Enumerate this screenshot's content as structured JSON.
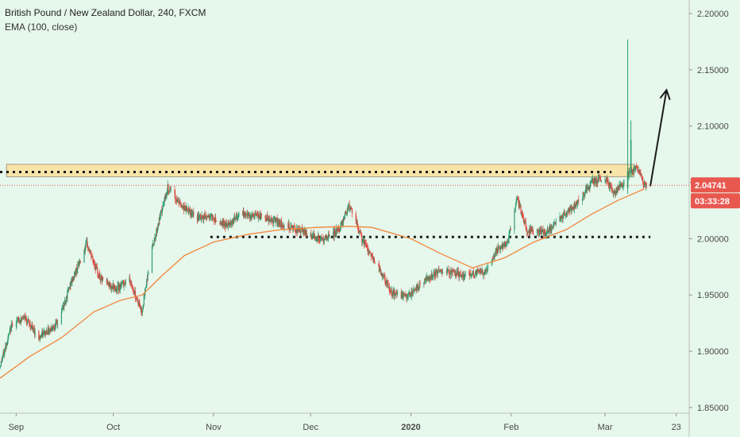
{
  "header": {
    "title": "British Pound / New Zealand Dollar, 240, FXCM",
    "indicator": "EMA (100, close)"
  },
  "price_badge": {
    "price": "2.04741",
    "countdown": "03:33:28"
  },
  "colors": {
    "background": "#e6f7ec",
    "up_candle": "#2a9d6f",
    "down_candle": "#e0443c",
    "ema": "#f2873a",
    "zone_fill": "#f7e4a8",
    "badge": "#e8584f",
    "arrow": "#1b1b1b",
    "dotted_line": "#1b1b1b"
  },
  "chart_data": {
    "type": "candlestick",
    "x_ticks": [
      "Sep",
      "Oct",
      "Nov",
      "Dec",
      "2020",
      "Feb",
      "Mar",
      "23"
    ],
    "y_ticks": [
      "2.20000",
      "2.15000",
      "2.10000",
      "2.05000",
      "2.00000",
      "1.95000",
      "1.90000",
      "1.85000"
    ],
    "ylim": [
      1.845,
      2.212
    ],
    "x_range": [
      "2019-08-27",
      "2020-03-27"
    ],
    "series": [
      {
        "name": "EMA (100, close)",
        "type": "line",
        "points": [
          [
            "2019-08-27",
            1.876
          ],
          [
            "2019-09-05",
            1.895
          ],
          [
            "2019-09-15",
            1.912
          ],
          [
            "2019-09-25",
            1.935
          ],
          [
            "2019-10-03",
            1.945
          ],
          [
            "2019-10-10",
            1.95
          ],
          [
            "2019-10-16",
            1.967
          ],
          [
            "2019-10-23",
            1.985
          ],
          [
            "2019-11-01",
            1.997
          ],
          [
            "2019-11-12",
            2.004
          ],
          [
            "2019-11-22",
            2.008
          ],
          [
            "2019-12-03",
            2.01
          ],
          [
            "2019-12-13",
            2.011
          ],
          [
            "2019-12-20",
            2.01
          ],
          [
            "2020-01-01",
            2.0
          ],
          [
            "2020-01-10",
            1.987
          ],
          [
            "2020-01-20",
            1.974
          ],
          [
            "2020-01-30",
            1.983
          ],
          [
            "2020-02-08",
            1.997
          ],
          [
            "2020-02-18",
            2.008
          ],
          [
            "2020-02-26",
            2.022
          ],
          [
            "2020-03-05",
            2.034
          ],
          [
            "2020-03-13",
            2.044
          ]
        ]
      }
    ],
    "anchors": [
      [
        "2019-08-27",
        1.885
      ],
      [
        "2019-08-31",
        1.925
      ],
      [
        "2019-09-04",
        1.93
      ],
      [
        "2019-09-08",
        1.912
      ],
      [
        "2019-09-14",
        1.925
      ],
      [
        "2019-09-18",
        1.96
      ],
      [
        "2019-09-23",
        1.995
      ],
      [
        "2019-09-27",
        1.965
      ],
      [
        "2019-10-02",
        1.955
      ],
      [
        "2019-10-06",
        1.965
      ],
      [
        "2019-10-10",
        1.935
      ],
      [
        "2019-10-13",
        1.99
      ],
      [
        "2019-10-18",
        2.045
      ],
      [
        "2019-10-22",
        2.03
      ],
      [
        "2019-10-27",
        2.018
      ],
      [
        "2019-10-31",
        2.02
      ],
      [
        "2019-11-05",
        2.012
      ],
      [
        "2019-11-10",
        2.022
      ],
      [
        "2019-11-18",
        2.018
      ],
      [
        "2019-11-25",
        2.01
      ],
      [
        "2019-11-30",
        2.005
      ],
      [
        "2019-12-05",
        1.998
      ],
      [
        "2019-12-10",
        2.008
      ],
      [
        "2019-12-13",
        2.03
      ],
      [
        "2019-12-17",
        2.0
      ],
      [
        "2019-12-22",
        1.975
      ],
      [
        "2019-12-26",
        1.952
      ],
      [
        "2019-12-31",
        1.948
      ],
      [
        "2020-01-05",
        1.962
      ],
      [
        "2020-01-10",
        1.972
      ],
      [
        "2020-01-17",
        1.968
      ],
      [
        "2020-01-24",
        1.97
      ],
      [
        "2020-01-28",
        1.99
      ],
      [
        "2020-01-31",
        1.995
      ],
      [
        "2020-02-03",
        2.035
      ],
      [
        "2020-02-06",
        2.008
      ],
      [
        "2020-02-12",
        2.005
      ],
      [
        "2020-02-17",
        2.02
      ],
      [
        "2020-02-21",
        2.03
      ],
      [
        "2020-02-26",
        2.05
      ],
      [
        "2020-03-01",
        2.055
      ],
      [
        "2020-03-04",
        2.04
      ],
      [
        "2020-03-07",
        2.05
      ],
      [
        "2020-03-09",
        2.06
      ],
      [
        "2020-03-11",
        2.065
      ],
      [
        "2020-03-13",
        2.049
      ],
      [
        "2020-03-15",
        2.047
      ]
    ],
    "spikes": [
      {
        "date": "2020-03-08",
        "open": 2.045,
        "high": 2.177,
        "low": 2.04,
        "close": 2.06
      },
      {
        "date": "2020-03-09",
        "open": 2.06,
        "high": 2.105,
        "low": 2.055,
        "close": 2.088
      }
    ],
    "annotations": {
      "resistance_zone": {
        "x_start": "2019-08-29",
        "x_end": "2020-03-10",
        "y_low": 2.055,
        "y_high": 2.066
      },
      "resistance_dotted_line": {
        "x_start": "2019-08-27",
        "x_end": "2020-03-03",
        "y": 2.0592
      },
      "support_dotted_line": {
        "x_start": "2019-10-31",
        "x_end": "2020-03-15",
        "y": 2.0015
      },
      "last_price_line": {
        "y": 2.04741
      },
      "projection_arrow": {
        "from": [
          "2020-03-15",
          2.047
        ],
        "to": [
          "2020-03-20",
          2.132
        ]
      }
    }
  }
}
